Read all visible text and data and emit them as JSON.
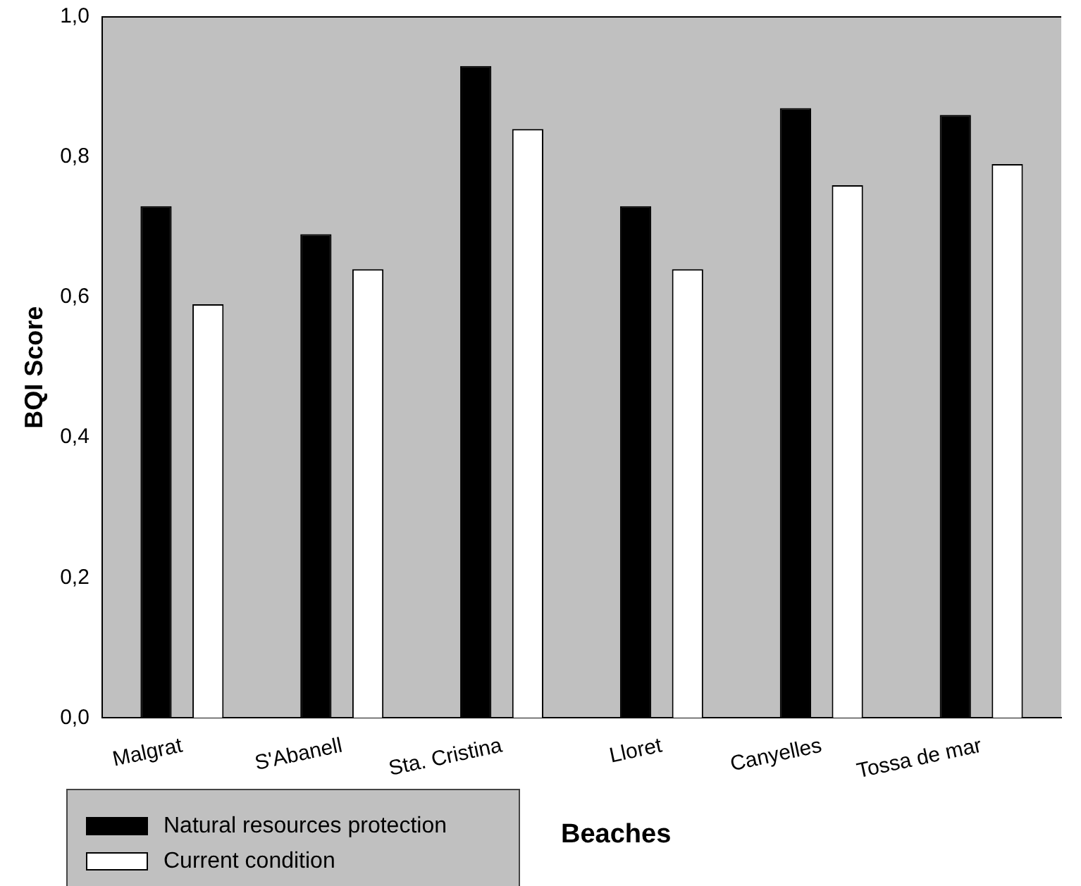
{
  "chart_data": {
    "type": "bar",
    "xlabel": "Beaches",
    "ylabel": "BQI Score",
    "categories": [
      "Malgrat",
      "S'Abanell",
      "Sta. Cristina",
      "Lloret",
      "Canyelles",
      "Tossa de mar"
    ],
    "series": [
      {
        "name": "Natural resources protection",
        "color": "#000000",
        "values": [
          0.73,
          0.69,
          0.93,
          0.73,
          0.87,
          0.86
        ]
      },
      {
        "name": "Current condition",
        "color": "#ffffff",
        "values": [
          0.59,
          0.64,
          0.84,
          0.64,
          0.76,
          0.79
        ]
      }
    ],
    "ylim": [
      0,
      1
    ],
    "yticks": [
      {
        "value": 0,
        "label": "0,0"
      },
      {
        "value": 0.2,
        "label": "0,2"
      },
      {
        "value": 0.4,
        "label": "0,4"
      },
      {
        "value": 0.6,
        "label": "0,6"
      },
      {
        "value": 0.8,
        "label": "0,8"
      },
      {
        "value": 1,
        "label": "1,0"
      }
    ],
    "grid": false,
    "legend": "bottom left"
  }
}
